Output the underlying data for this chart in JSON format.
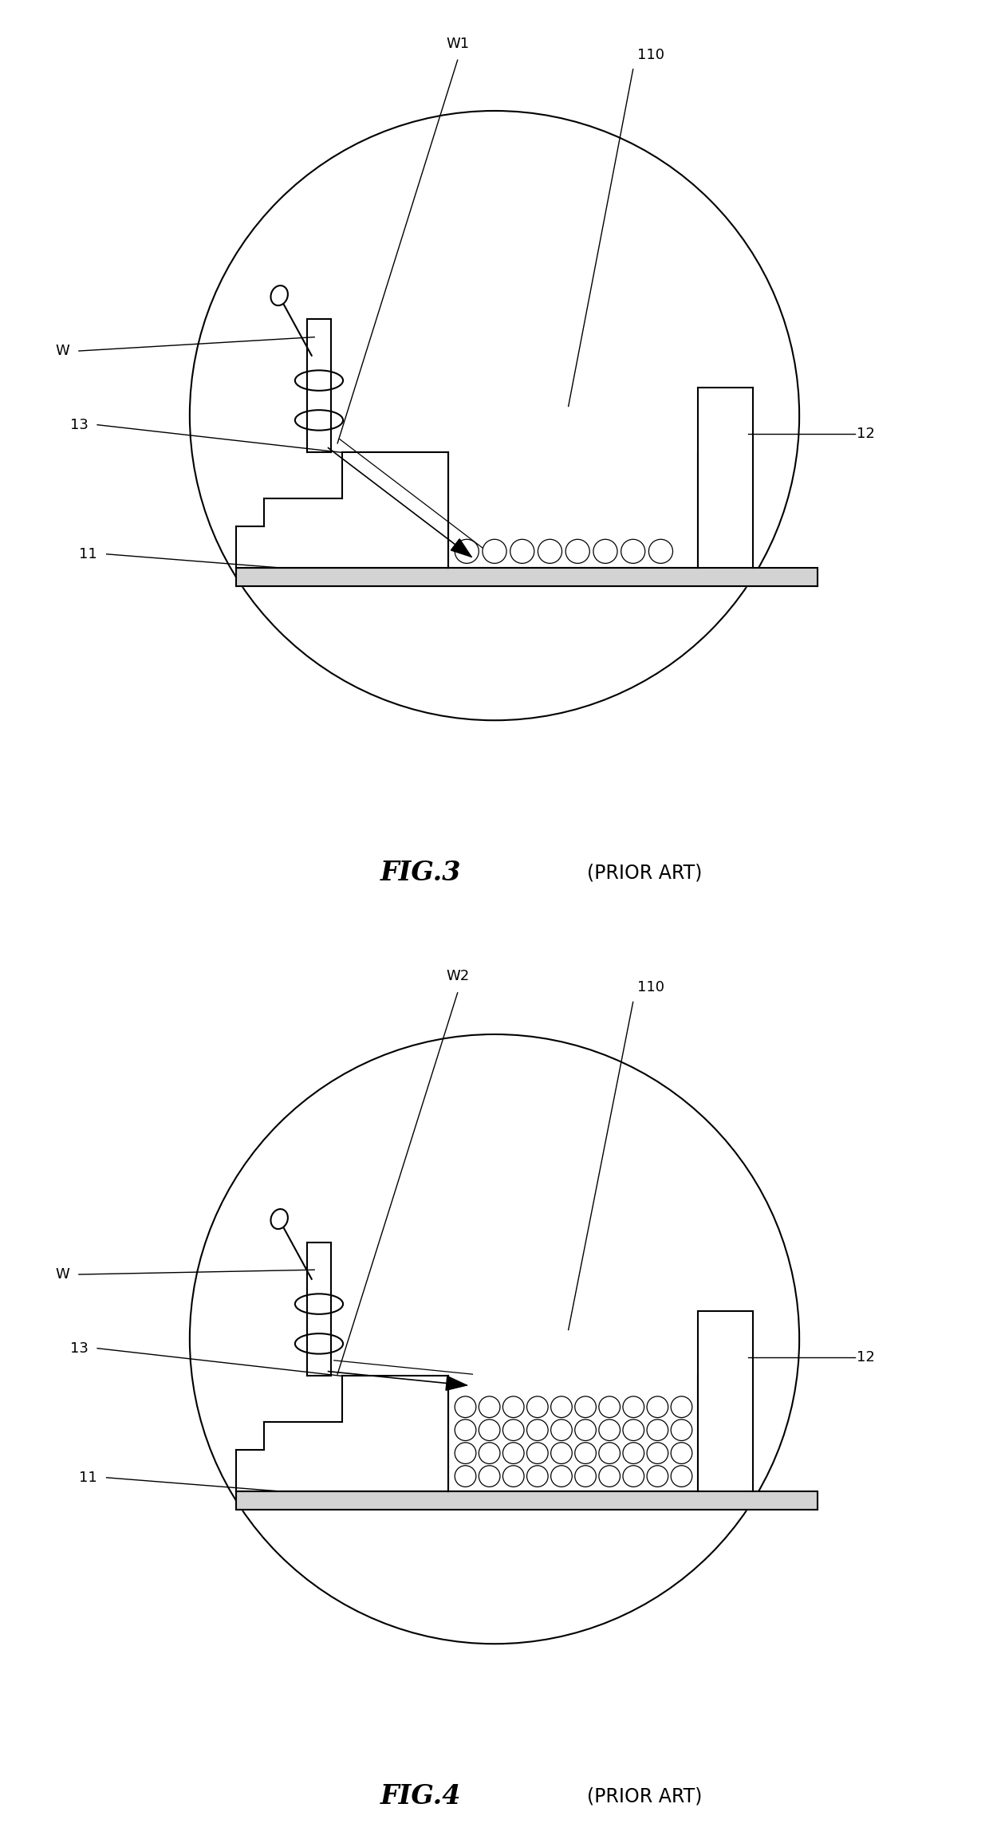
{
  "fig_width": 12.4,
  "fig_height": 23.16,
  "background_color": "#ffffff",
  "fig3": {
    "title": "FIG.3",
    "subtitle": "(PRIOR ART)"
  },
  "fig4": {
    "title": "FIG.4",
    "subtitle": "(PRIOR ART)"
  }
}
